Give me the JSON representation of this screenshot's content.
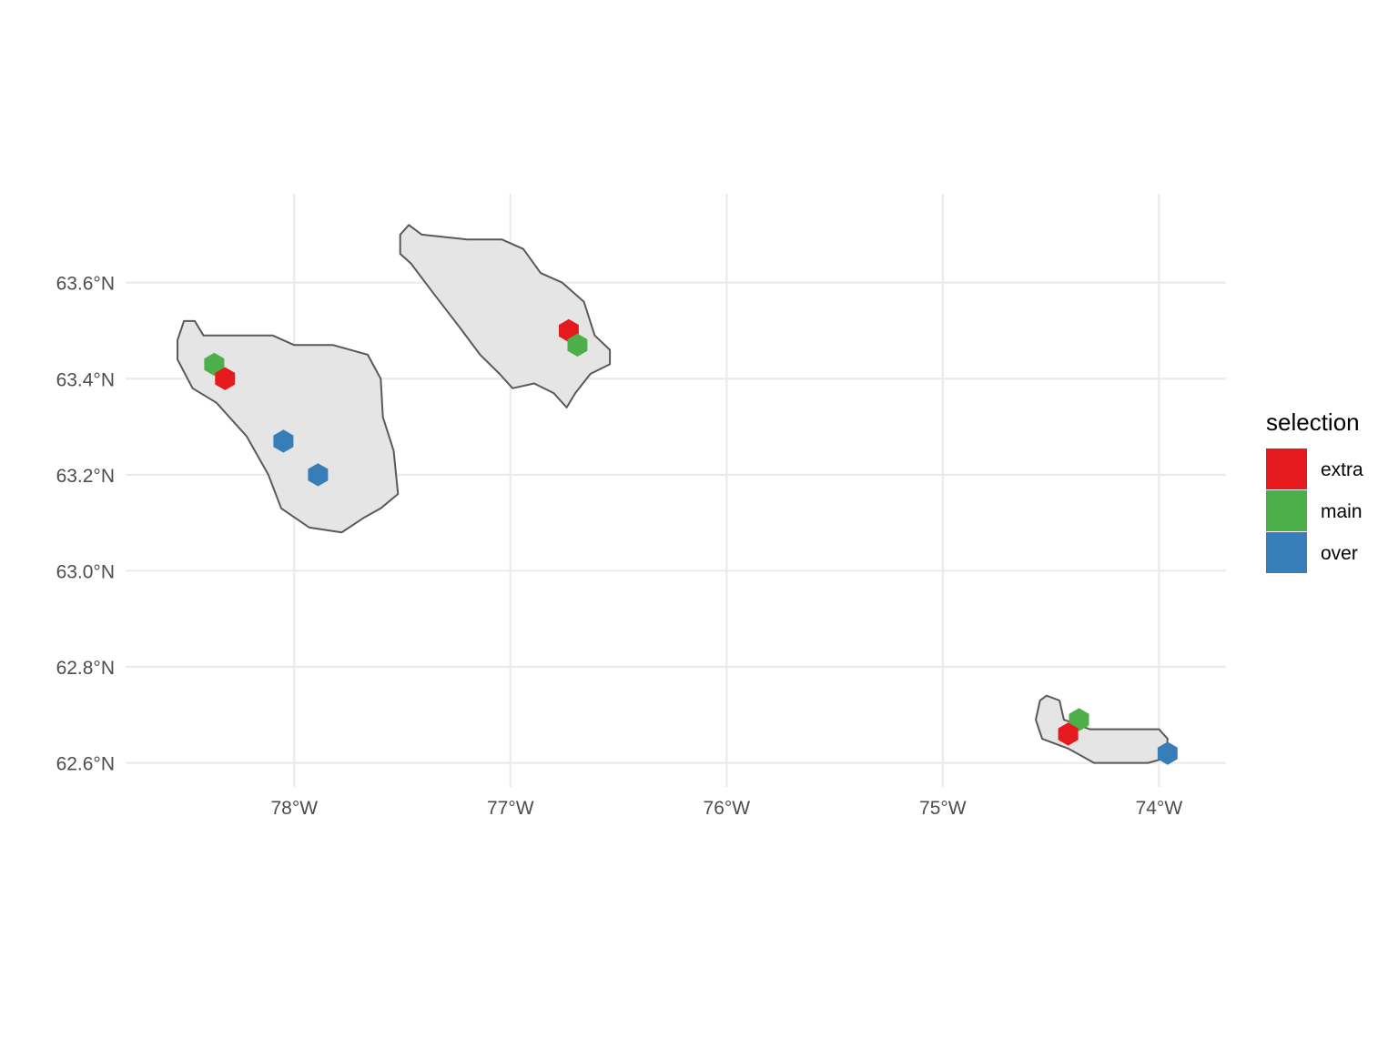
{
  "chart_data": {
    "type": "map",
    "x_axis": {
      "ticks": [
        {
          "value": -78,
          "label": "78°W"
        },
        {
          "value": -77,
          "label": "77°W"
        },
        {
          "value": -76,
          "label": "76°W"
        },
        {
          "value": -75,
          "label": "75°W"
        },
        {
          "value": -74,
          "label": "74°W"
        }
      ]
    },
    "y_axis": {
      "ticks": [
        {
          "value": 62.6,
          "label": "62.6°N"
        },
        {
          "value": 62.8,
          "label": "62.8°N"
        },
        {
          "value": 63.0,
          "label": "63.0°N"
        },
        {
          "value": 63.2,
          "label": "63.2°N"
        },
        {
          "value": 63.4,
          "label": "63.4°N"
        },
        {
          "value": 63.6,
          "label": "63.6°N"
        }
      ]
    },
    "xlim": [
      -78.78,
      -73.69
    ],
    "ylim": [
      62.55,
      63.785
    ],
    "grid": true,
    "hex_size_deg": 0.048,
    "legend": {
      "title": "selection",
      "position": "right",
      "entries": [
        {
          "key": "extra",
          "label": "extra",
          "color": "#E41A1C"
        },
        {
          "key": "main",
          "label": "main",
          "color": "#4DAF4A"
        },
        {
          "key": "over",
          "label": "over",
          "color": "#377EB8"
        }
      ]
    },
    "regions": [
      {
        "name": "region-1",
        "fill": "#E5E5E5",
        "outline": "#595959",
        "boundary": [
          [
            -78.51,
            63.52
          ],
          [
            -78.46,
            63.52
          ],
          [
            -78.42,
            63.49
          ],
          [
            -78.3,
            63.49
          ],
          [
            -78.1,
            63.49
          ],
          [
            -78.0,
            63.47
          ],
          [
            -77.82,
            63.47
          ],
          [
            -77.66,
            63.45
          ],
          [
            -77.6,
            63.4
          ],
          [
            -77.59,
            63.32
          ],
          [
            -77.54,
            63.25
          ],
          [
            -77.52,
            63.16
          ],
          [
            -77.6,
            63.13
          ],
          [
            -77.68,
            63.11
          ],
          [
            -77.78,
            63.08
          ],
          [
            -77.93,
            63.09
          ],
          [
            -78.06,
            63.13
          ],
          [
            -78.12,
            63.2
          ],
          [
            -78.22,
            63.28
          ],
          [
            -78.36,
            63.35
          ],
          [
            -78.47,
            63.38
          ],
          [
            -78.54,
            63.44
          ],
          [
            -78.54,
            63.48
          ]
        ]
      },
      {
        "name": "region-2",
        "fill": "#E5E5E5",
        "outline": "#595959",
        "boundary": [
          [
            -77.47,
            63.72
          ],
          [
            -77.41,
            63.7
          ],
          [
            -77.2,
            63.69
          ],
          [
            -77.04,
            63.69
          ],
          [
            -76.94,
            63.67
          ],
          [
            -76.86,
            63.62
          ],
          [
            -76.76,
            63.6
          ],
          [
            -76.66,
            63.56
          ],
          [
            -76.61,
            63.49
          ],
          [
            -76.54,
            63.46
          ],
          [
            -76.54,
            63.43
          ],
          [
            -76.63,
            63.41
          ],
          [
            -76.7,
            63.37
          ],
          [
            -76.74,
            63.34
          ],
          [
            -76.8,
            63.37
          ],
          [
            -76.89,
            63.39
          ],
          [
            -76.99,
            63.38
          ],
          [
            -77.05,
            63.41
          ],
          [
            -77.14,
            63.45
          ],
          [
            -77.24,
            63.51
          ],
          [
            -77.36,
            63.58
          ],
          [
            -77.46,
            63.64
          ],
          [
            -77.51,
            63.66
          ],
          [
            -77.51,
            63.7
          ]
        ]
      },
      {
        "name": "region-3",
        "fill": "#E5E5E5",
        "outline": "#595959",
        "boundary": [
          [
            -74.52,
            62.74
          ],
          [
            -74.46,
            62.73
          ],
          [
            -74.44,
            62.69
          ],
          [
            -74.32,
            62.67
          ],
          [
            -74.0,
            62.67
          ],
          [
            -73.96,
            62.65
          ],
          [
            -73.97,
            62.61
          ],
          [
            -74.05,
            62.6
          ],
          [
            -74.3,
            62.6
          ],
          [
            -74.42,
            62.63
          ],
          [
            -74.54,
            62.65
          ],
          [
            -74.57,
            62.69
          ],
          [
            -74.55,
            62.73
          ]
        ]
      }
    ],
    "points": [
      {
        "category": "main",
        "lon": -78.37,
        "lat": 63.43
      },
      {
        "category": "extra",
        "lon": -78.32,
        "lat": 63.4
      },
      {
        "category": "over",
        "lon": -78.05,
        "lat": 63.27
      },
      {
        "category": "over",
        "lon": -77.89,
        "lat": 63.2
      },
      {
        "category": "extra",
        "lon": -76.73,
        "lat": 63.5
      },
      {
        "category": "main",
        "lon": -76.69,
        "lat": 63.47
      },
      {
        "category": "main",
        "lon": -74.37,
        "lat": 62.69
      },
      {
        "category": "extra",
        "lon": -74.42,
        "lat": 62.66
      },
      {
        "category": "over",
        "lon": -73.96,
        "lat": 62.62
      }
    ]
  }
}
